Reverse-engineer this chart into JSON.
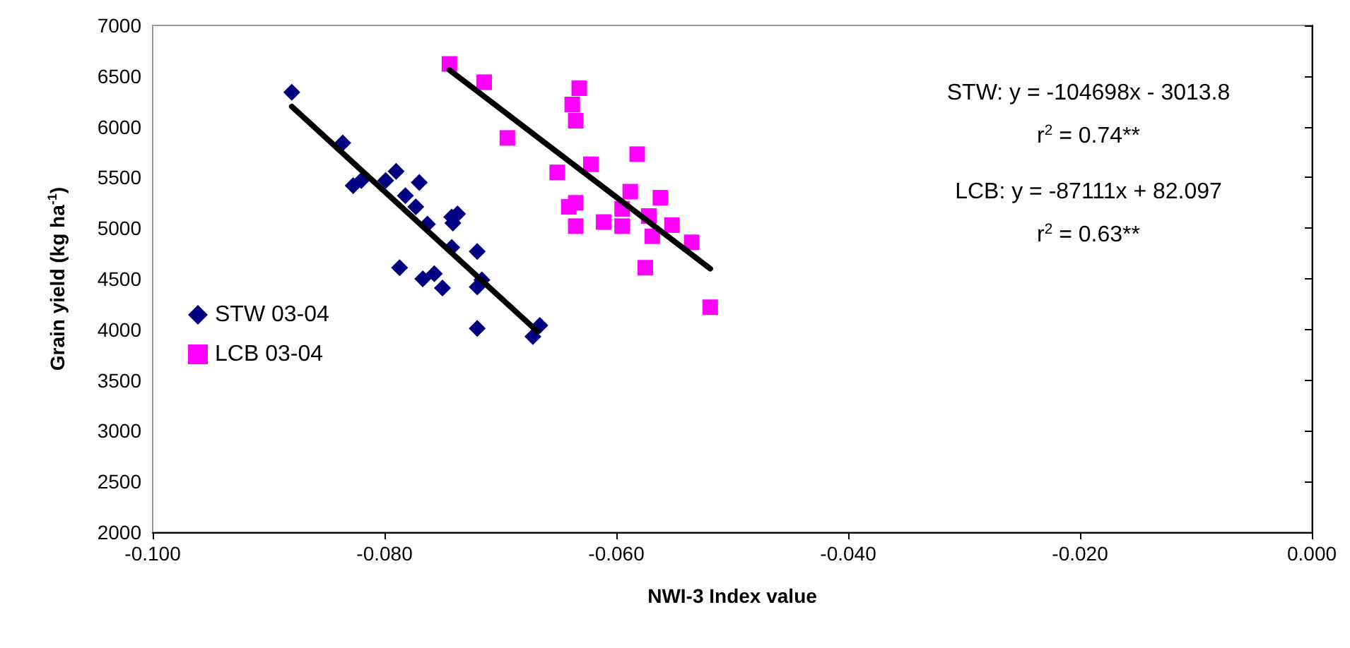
{
  "chart_data": {
    "type": "scatter",
    "xlabel": "NWI-3 Index value",
    "ylabel": "Grain yield (kg ha$^{-1}$)",
    "xlim": [
      -0.1,
      0
    ],
    "xticks": [
      {
        "value": -0.1,
        "label": "-0.100"
      },
      {
        "value": -0.08,
        "label": "-0.080"
      },
      {
        "value": -0.06,
        "label": "-0.060"
      },
      {
        "value": -0.04,
        "label": "-0.040"
      },
      {
        "value": -0.02,
        "label": "-0.020"
      },
      {
        "value": 0,
        "label": "0.000"
      }
    ],
    "ylim": [
      2000,
      7000
    ],
    "yticks": [
      2000,
      2500,
      3000,
      3500,
      4000,
      4500,
      5000,
      5500,
      6000,
      6500,
      7000
    ],
    "grid": false,
    "legend": "left",
    "annotations": [
      "STW: y = -104698x - 3013.8",
      "r$^{2}$ = 0.74**",
      "LCB: y = -87111x + 82.097",
      "r$^{2}$ = 0.63**"
    ],
    "series": [
      {
        "name": "STW 03-04",
        "marker": "diamond",
        "color": "#000080",
        "x": [
          -0.088,
          -0.0836,
          -0.0827,
          -0.082,
          -0.0799,
          -0.079,
          -0.077,
          -0.0782,
          -0.0773,
          -0.0763,
          -0.0742,
          -0.0737,
          -0.0741,
          -0.0742,
          -0.072,
          -0.0787,
          -0.0767,
          -0.0757,
          -0.075,
          -0.072,
          -0.0716,
          -0.072,
          -0.0672,
          -0.0666
        ],
        "values": [
          6340,
          5840,
          5420,
          5470,
          5470,
          5560,
          5450,
          5320,
          5210,
          5040,
          5110,
          5140,
          5050,
          4810,
          4770,
          4610,
          4500,
          4550,
          4410,
          4420,
          4490,
          4010,
          3930,
          4040
        ]
      },
      {
        "name": "LCB 03-04",
        "marker": "square",
        "color": "#ff00ff",
        "x": [
          -0.0744,
          -0.0714,
          -0.0632,
          -0.0638,
          -0.0635,
          -0.0694,
          -0.0582,
          -0.0622,
          -0.0651,
          -0.0588,
          -0.0562,
          -0.0635,
          -0.0641,
          -0.0595,
          -0.0572,
          -0.0611,
          -0.0595,
          -0.0635,
          -0.0552,
          -0.0569,
          -0.0535,
          -0.0575,
          -0.0519
        ],
        "values": [
          6620,
          6440,
          6380,
          6220,
          6060,
          5890,
          5730,
          5630,
          5550,
          5360,
          5300,
          5250,
          5210,
          5190,
          5120,
          5060,
          5020,
          5020,
          5030,
          4920,
          4860,
          4610,
          4220
        ]
      },
      {
        "type": "line",
        "color": "#000000",
        "marker": "none",
        "line_style": "solid",
        "x": [
          -0.088,
          -0.0668
        ],
        "values": [
          6200,
          3980
        ]
      },
      {
        "type": "line",
        "color": "#000000",
        "marker": "none",
        "line_style": "solid",
        "x": [
          -0.0744,
          -0.0519
        ],
        "values": [
          6560,
          4600
        ]
      }
    ]
  }
}
